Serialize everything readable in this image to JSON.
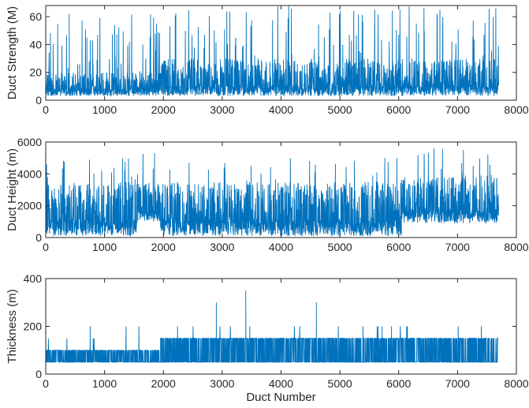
{
  "chart_data": [
    {
      "type": "line",
      "ylabel": "Duct Strength (M)",
      "xlabel": "",
      "xlim": [
        0,
        8000
      ],
      "ylim": [
        0,
        68
      ],
      "xticks": [
        "0",
        "1000",
        "2000",
        "3000",
        "4000",
        "5000",
        "6000",
        "7000",
        "8000"
      ],
      "yticks": [
        "0",
        "20",
        "40",
        "60"
      ],
      "grid": false,
      "color": "#0072BD",
      "series": [
        {
          "n": 7700,
          "segments": [
            {
              "x": [
                0,
                1950
              ],
              "base": 3,
              "typical_max": 20,
              "max": 62
            },
            {
              "x": [
                1950,
                7700
              ],
              "base": 3,
              "typical_max": 30,
              "max": 68
            }
          ],
          "peaks": [
            [
              400,
              62
            ],
            [
              700,
              45
            ],
            [
              1650,
              40
            ],
            [
              2700,
              47
            ],
            [
              4130,
              68
            ],
            [
              6300,
              55
            ],
            [
              6700,
              65
            ],
            [
              7450,
              47
            ]
          ]
        }
      ]
    },
    {
      "type": "line",
      "ylabel": "Duct Height (m)",
      "xlabel": "",
      "xlim": [
        0,
        8000
      ],
      "ylim": [
        0,
        6000
      ],
      "xticks": [
        "0",
        "1000",
        "2000",
        "3000",
        "4000",
        "5000",
        "6000",
        "7000",
        "8000"
      ],
      "yticks": [
        "0",
        "2000",
        "4000",
        "6000"
      ],
      "grid": false,
      "color": "#0072BD",
      "series": [
        {
          "n": 7700,
          "segments": [
            {
              "x": [
                0,
                1550
              ],
              "base": 100,
              "typical_max": 3500,
              "max": 5000
            },
            {
              "x": [
                1550,
                1950
              ],
              "base": 1000,
              "typical_max": 3500,
              "max": 5300
            },
            {
              "x": [
                1950,
                3950
              ],
              "base": 100,
              "typical_max": 3500,
              "max": 5000
            },
            {
              "x": [
                3950,
                6050
              ],
              "base": 100,
              "typical_max": 3500,
              "max": 5000
            },
            {
              "x": [
                6050,
                7700
              ],
              "base": 900,
              "typical_max": 3800,
              "max": 5600
            }
          ],
          "peaks": [
            [
              1850,
              5300
            ],
            [
              6600,
              5600
            ],
            [
              7100,
              5500
            ]
          ]
        }
      ]
    },
    {
      "type": "line",
      "ylabel": "Thickness (m)",
      "xlabel": "Duct Number",
      "xlim": [
        0,
        8000
      ],
      "ylim": [
        0,
        400
      ],
      "xticks": [
        "0",
        "1000",
        "2000",
        "3000",
        "4000",
        "5000",
        "6000",
        "7000",
        "8000"
      ],
      "yticks": [
        "0",
        "200",
        "400"
      ],
      "grid": false,
      "color": "#0072BD",
      "series": [
        {
          "n": 7700,
          "levels": [
            50,
            100,
            150,
            200,
            250,
            300,
            350
          ],
          "segments": [
            {
              "x": [
                0,
                1950
              ],
              "base": 50,
              "upper": 100
            },
            {
              "x": [
                1950,
                7700
              ],
              "base": 50,
              "upper": 150
            }
          ],
          "peaks": [
            [
              2900,
              300
            ],
            [
              3400,
              350
            ],
            [
              4600,
              300
            ]
          ]
        }
      ]
    }
  ]
}
